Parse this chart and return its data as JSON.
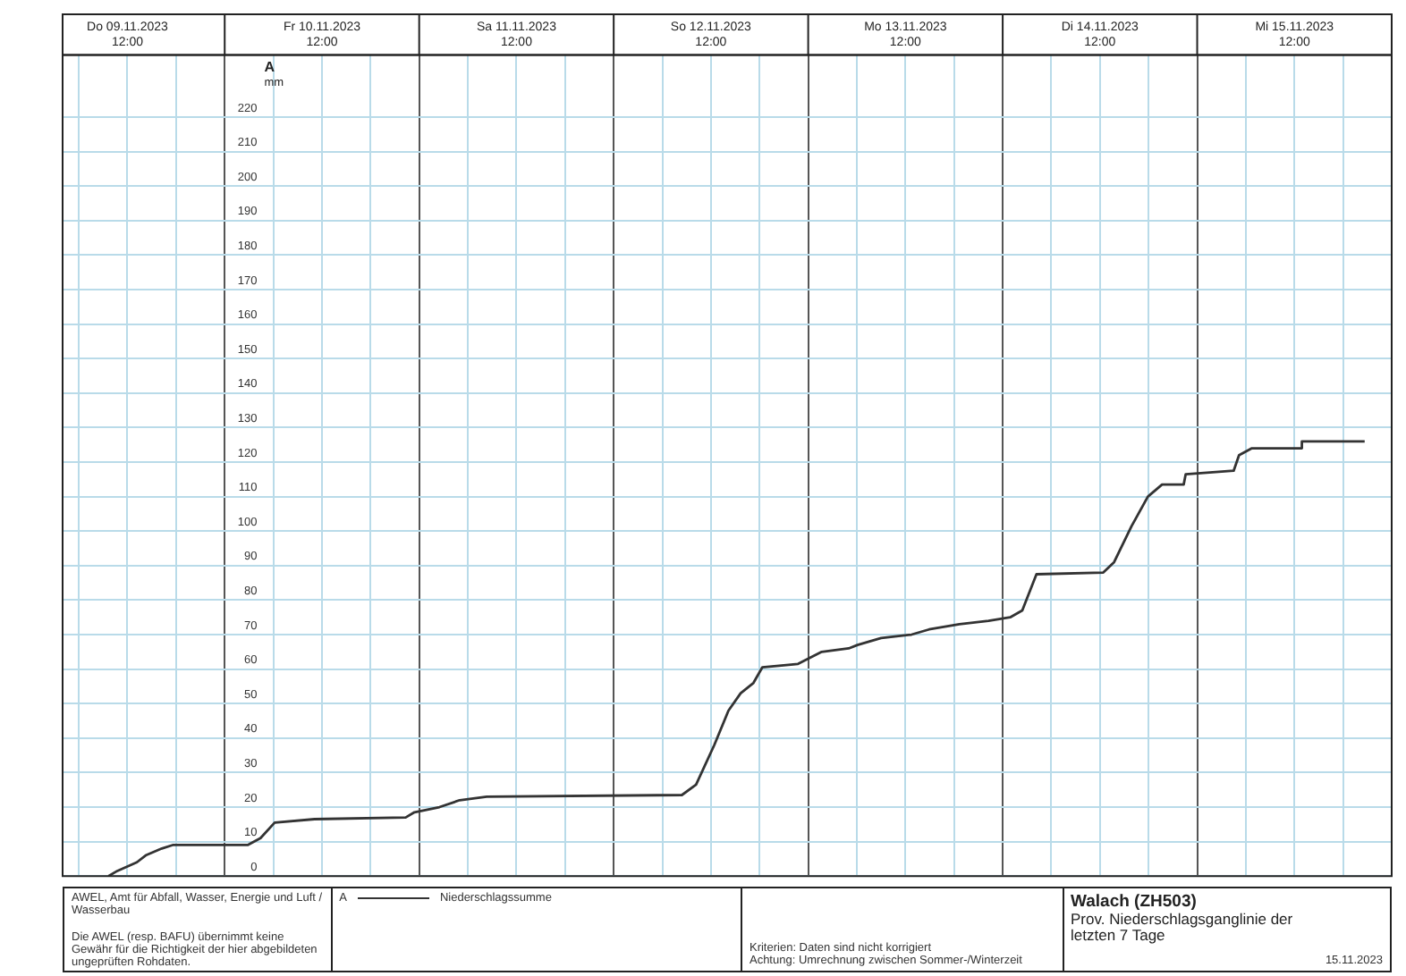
{
  "chart_data": {
    "type": "line",
    "title": "Walach (ZH503)",
    "subtitle": "Prov. Niederschlagsganglinie der letzten 7 Tage",
    "ylabel": "mm",
    "annotations": [
      "A",
      "AWEL, Amt für Abfall, Wasser, Energie und Luft / Wasserbau",
      "Die AWEL (resp. BAFU) übernimmt keine Gewähr für die Richtigkeit der hier abgebildeten ungeprüften Rohdaten.",
      "Kriterien: Daten sind nicht korrigiert",
      "Achtung: Umrechnung zwischen Sommer-/Winterzeit",
      "15.11.2023"
    ],
    "x": [
      "2023-11-09T09:40",
      "2023-11-09T10:45",
      "2023-11-09T13:10",
      "2023-11-09T14:15",
      "2023-11-09T16:15",
      "2023-11-09T17:35",
      "2023-11-10T02:50",
      "2023-11-10T04:25",
      "2023-11-10T06:10",
      "2023-11-10T11:05",
      "2023-11-10T22:20",
      "2023-11-10T23:25",
      "2023-11-11T02:30",
      "2023-11-11T05:00",
      "2023-11-11T08:20",
      "2023-11-12T08:25",
      "2023-11-12T10:10",
      "2023-11-12T12:25",
      "2023-11-12T14:10",
      "2023-11-12T15:40",
      "2023-11-12T17:15",
      "2023-11-12T18:20",
      "2023-11-12T22:45",
      "2023-11-13T01:40",
      "2023-11-13T05:00",
      "2023-11-13T06:05",
      "2023-11-13T09:00",
      "2023-11-13T12:45",
      "2023-11-13T14:55",
      "2023-11-13T18:40",
      "2023-11-13T22:15",
      "2023-11-14T00:55",
      "2023-11-14T02:25",
      "2023-11-14T04:10",
      "2023-11-14T12:25",
      "2023-11-14T13:45",
      "2023-11-14T15:55",
      "2023-11-14T17:55",
      "2023-11-14T19:40",
      "2023-11-14T22:20",
      "2023-11-14T22:35",
      "2023-11-15T04:30",
      "2023-11-15T05:10",
      "2023-11-15T06:45",
      "2023-11-15T12:45",
      "2023-11-15T12:55",
      "2023-11-15T20:40"
    ],
    "series": [
      {
        "name": "Niederschlagssumme",
        "color": "#333333",
        "values": [
          0,
          1.5,
          4,
          6,
          8,
          9,
          9,
          11,
          15.5,
          16.5,
          17,
          18.5,
          20,
          22,
          23,
          23.5,
          26.5,
          38,
          48,
          53,
          56,
          60.5,
          61.5,
          65,
          66,
          67,
          69,
          70,
          71.5,
          73,
          74,
          75,
          77,
          87.5,
          88,
          91,
          101.5,
          110,
          113.5,
          113.5,
          116.5,
          117.5,
          122,
          124,
          124,
          126,
          126
        ]
      }
    ],
    "xlim": [
      "2023-11-09T04:00",
      "2023-11-16T00:00"
    ],
    "xticks": [
      {
        "value": "2023-11-09T06:00",
        "label": null
      },
      {
        "value": "2023-11-09T12:00",
        "label": "Do 09.11.2023 12:00"
      },
      {
        "value": "2023-11-09T18:00",
        "label": null
      },
      {
        "value": "2023-11-10T00:00",
        "label": null
      },
      {
        "value": "2023-11-10T06:00",
        "label": null
      },
      {
        "value": "2023-11-10T12:00",
        "label": "Fr 10.11.2023 12:00"
      },
      {
        "value": "2023-11-10T18:00",
        "label": null
      },
      {
        "value": "2023-11-11T00:00",
        "label": null
      },
      {
        "value": "2023-11-11T06:00",
        "label": null
      },
      {
        "value": "2023-11-11T12:00",
        "label": "Sa 11.11.2023 12:00"
      },
      {
        "value": "2023-11-11T18:00",
        "label": null
      },
      {
        "value": "2023-11-12T00:00",
        "label": null
      },
      {
        "value": "2023-11-12T06:00",
        "label": null
      },
      {
        "value": "2023-11-12T12:00",
        "label": "So 12.11.2023 12:00"
      },
      {
        "value": "2023-11-12T18:00",
        "label": null
      },
      {
        "value": "2023-11-13T00:00",
        "label": null
      },
      {
        "value": "2023-11-13T06:00",
        "label": null
      },
      {
        "value": "2023-11-13T12:00",
        "label": "Mo 13.11.2023 12:00"
      },
      {
        "value": "2023-11-13T18:00",
        "label": null
      },
      {
        "value": "2023-11-14T00:00",
        "label": null
      },
      {
        "value": "2023-11-14T06:00",
        "label": null
      },
      {
        "value": "2023-11-14T12:00",
        "label": "Di 14.11.2023 12:00"
      },
      {
        "value": "2023-11-14T18:00",
        "label": null
      },
      {
        "value": "2023-11-15T00:00",
        "label": null
      },
      {
        "value": "2023-11-15T06:00",
        "label": null
      },
      {
        "value": "2023-11-15T12:00",
        "label": "Mi 15.11.2023 12:00"
      },
      {
        "value": "2023-11-15T18:00",
        "label": null
      }
    ],
    "ylim": [
      0,
      238
    ],
    "yticks": [
      0,
      10,
      20,
      30,
      40,
      50,
      60,
      70,
      80,
      90,
      100,
      110,
      120,
      130,
      140,
      150,
      160,
      170,
      180,
      190,
      200,
      210,
      220
    ],
    "grid": true,
    "legend": "bottom",
    "marker": "none",
    "line_style": "solid"
  }
}
